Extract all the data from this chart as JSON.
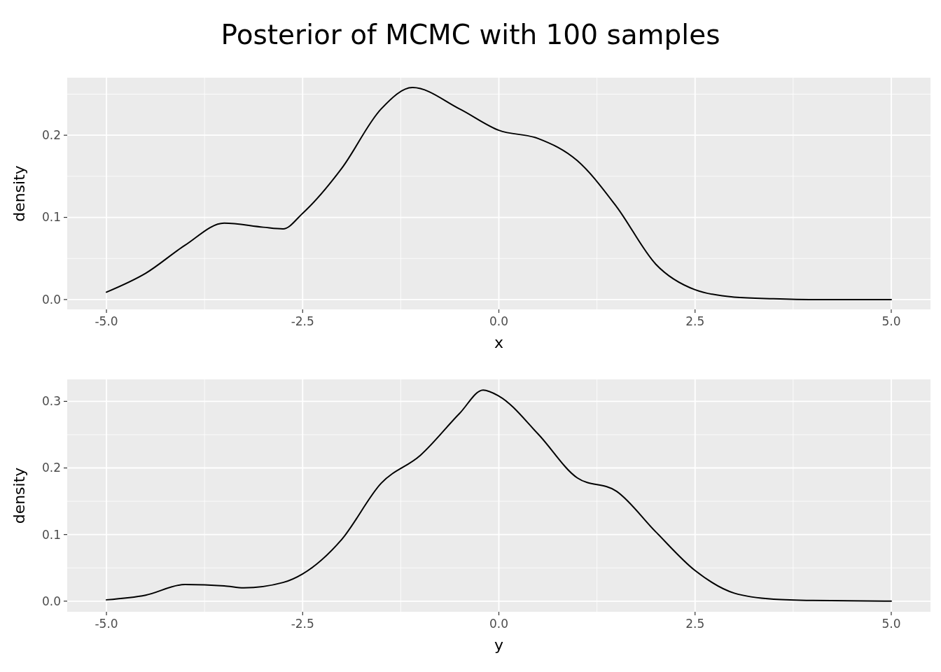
{
  "chart_data": [
    {
      "type": "line",
      "title": "Posterior of MCMC with 100 samples",
      "xlabel": "x",
      "ylabel": "density",
      "x": [
        -5,
        -4.5,
        -4,
        -3.5,
        -3,
        -2.75,
        -2.5,
        -2,
        -1.5,
        -1.1,
        -0.5,
        0,
        0.5,
        1,
        1.5,
        2,
        2.5,
        3,
        3.5,
        4,
        4.5,
        5
      ],
      "series": [
        {
          "color": "#000000",
          "values": [
            0.009,
            0.032,
            0.066,
            0.093,
            0.088,
            0.086,
            0.105,
            0.16,
            0.232,
            0.258,
            0.232,
            0.206,
            0.196,
            0.169,
            0.113,
            0.043,
            0.012,
            0.003,
            0.001,
            0,
            0,
            0
          ]
        }
      ],
      "xlim": [
        -5.5,
        5.5
      ],
      "xticks": [
        {
          "value": -5,
          "label": "-5.0"
        },
        {
          "value": -2.5,
          "label": "-2.5"
        },
        {
          "value": 0,
          "label": "0.0"
        },
        {
          "value": 2.5,
          "label": "2.5"
        },
        {
          "value": 5,
          "label": "5.0"
        }
      ],
      "ylim": [
        -0.012,
        0.27
      ],
      "yticks": [
        {
          "value": 0,
          "label": "0.0"
        },
        0.1,
        0.2
      ],
      "grid": true,
      "marker": "none",
      "line_style": "solid"
    },
    {
      "type": "line",
      "xlabel": "y",
      "ylabel": "density",
      "x": [
        -5,
        -4.5,
        -4,
        -3.5,
        -3.25,
        -2.75,
        -2.5,
        -2,
        -1.5,
        -1,
        -0.5,
        -0.2,
        0,
        0.5,
        1,
        1.5,
        2,
        2.5,
        3,
        3.5,
        4,
        5
      ],
      "series": [
        {
          "color": "#000000",
          "values": [
            0.002,
            0.009,
            0.025,
            0.023,
            0.02,
            0.028,
            0.041,
            0.093,
            0.177,
            0.219,
            0.282,
            0.317,
            0.308,
            0.251,
            0.185,
            0.165,
            0.104,
            0.046,
            0.012,
            0.003,
            0.001,
            0
          ]
        }
      ],
      "xlim": [
        -5.5,
        5.5
      ],
      "xticks": [
        {
          "value": -5,
          "label": "-5.0"
        },
        {
          "value": -2.5,
          "label": "-2.5"
        },
        {
          "value": 0,
          "label": "0.0"
        },
        {
          "value": 2.5,
          "label": "2.5"
        },
        {
          "value": 5,
          "label": "5.0"
        }
      ],
      "ylim": [
        -0.016,
        0.333
      ],
      "yticks": [
        {
          "value": 0,
          "label": "0.0"
        },
        0.1,
        0.2,
        0.3
      ],
      "grid": true,
      "marker": "none",
      "line_style": "solid"
    }
  ]
}
